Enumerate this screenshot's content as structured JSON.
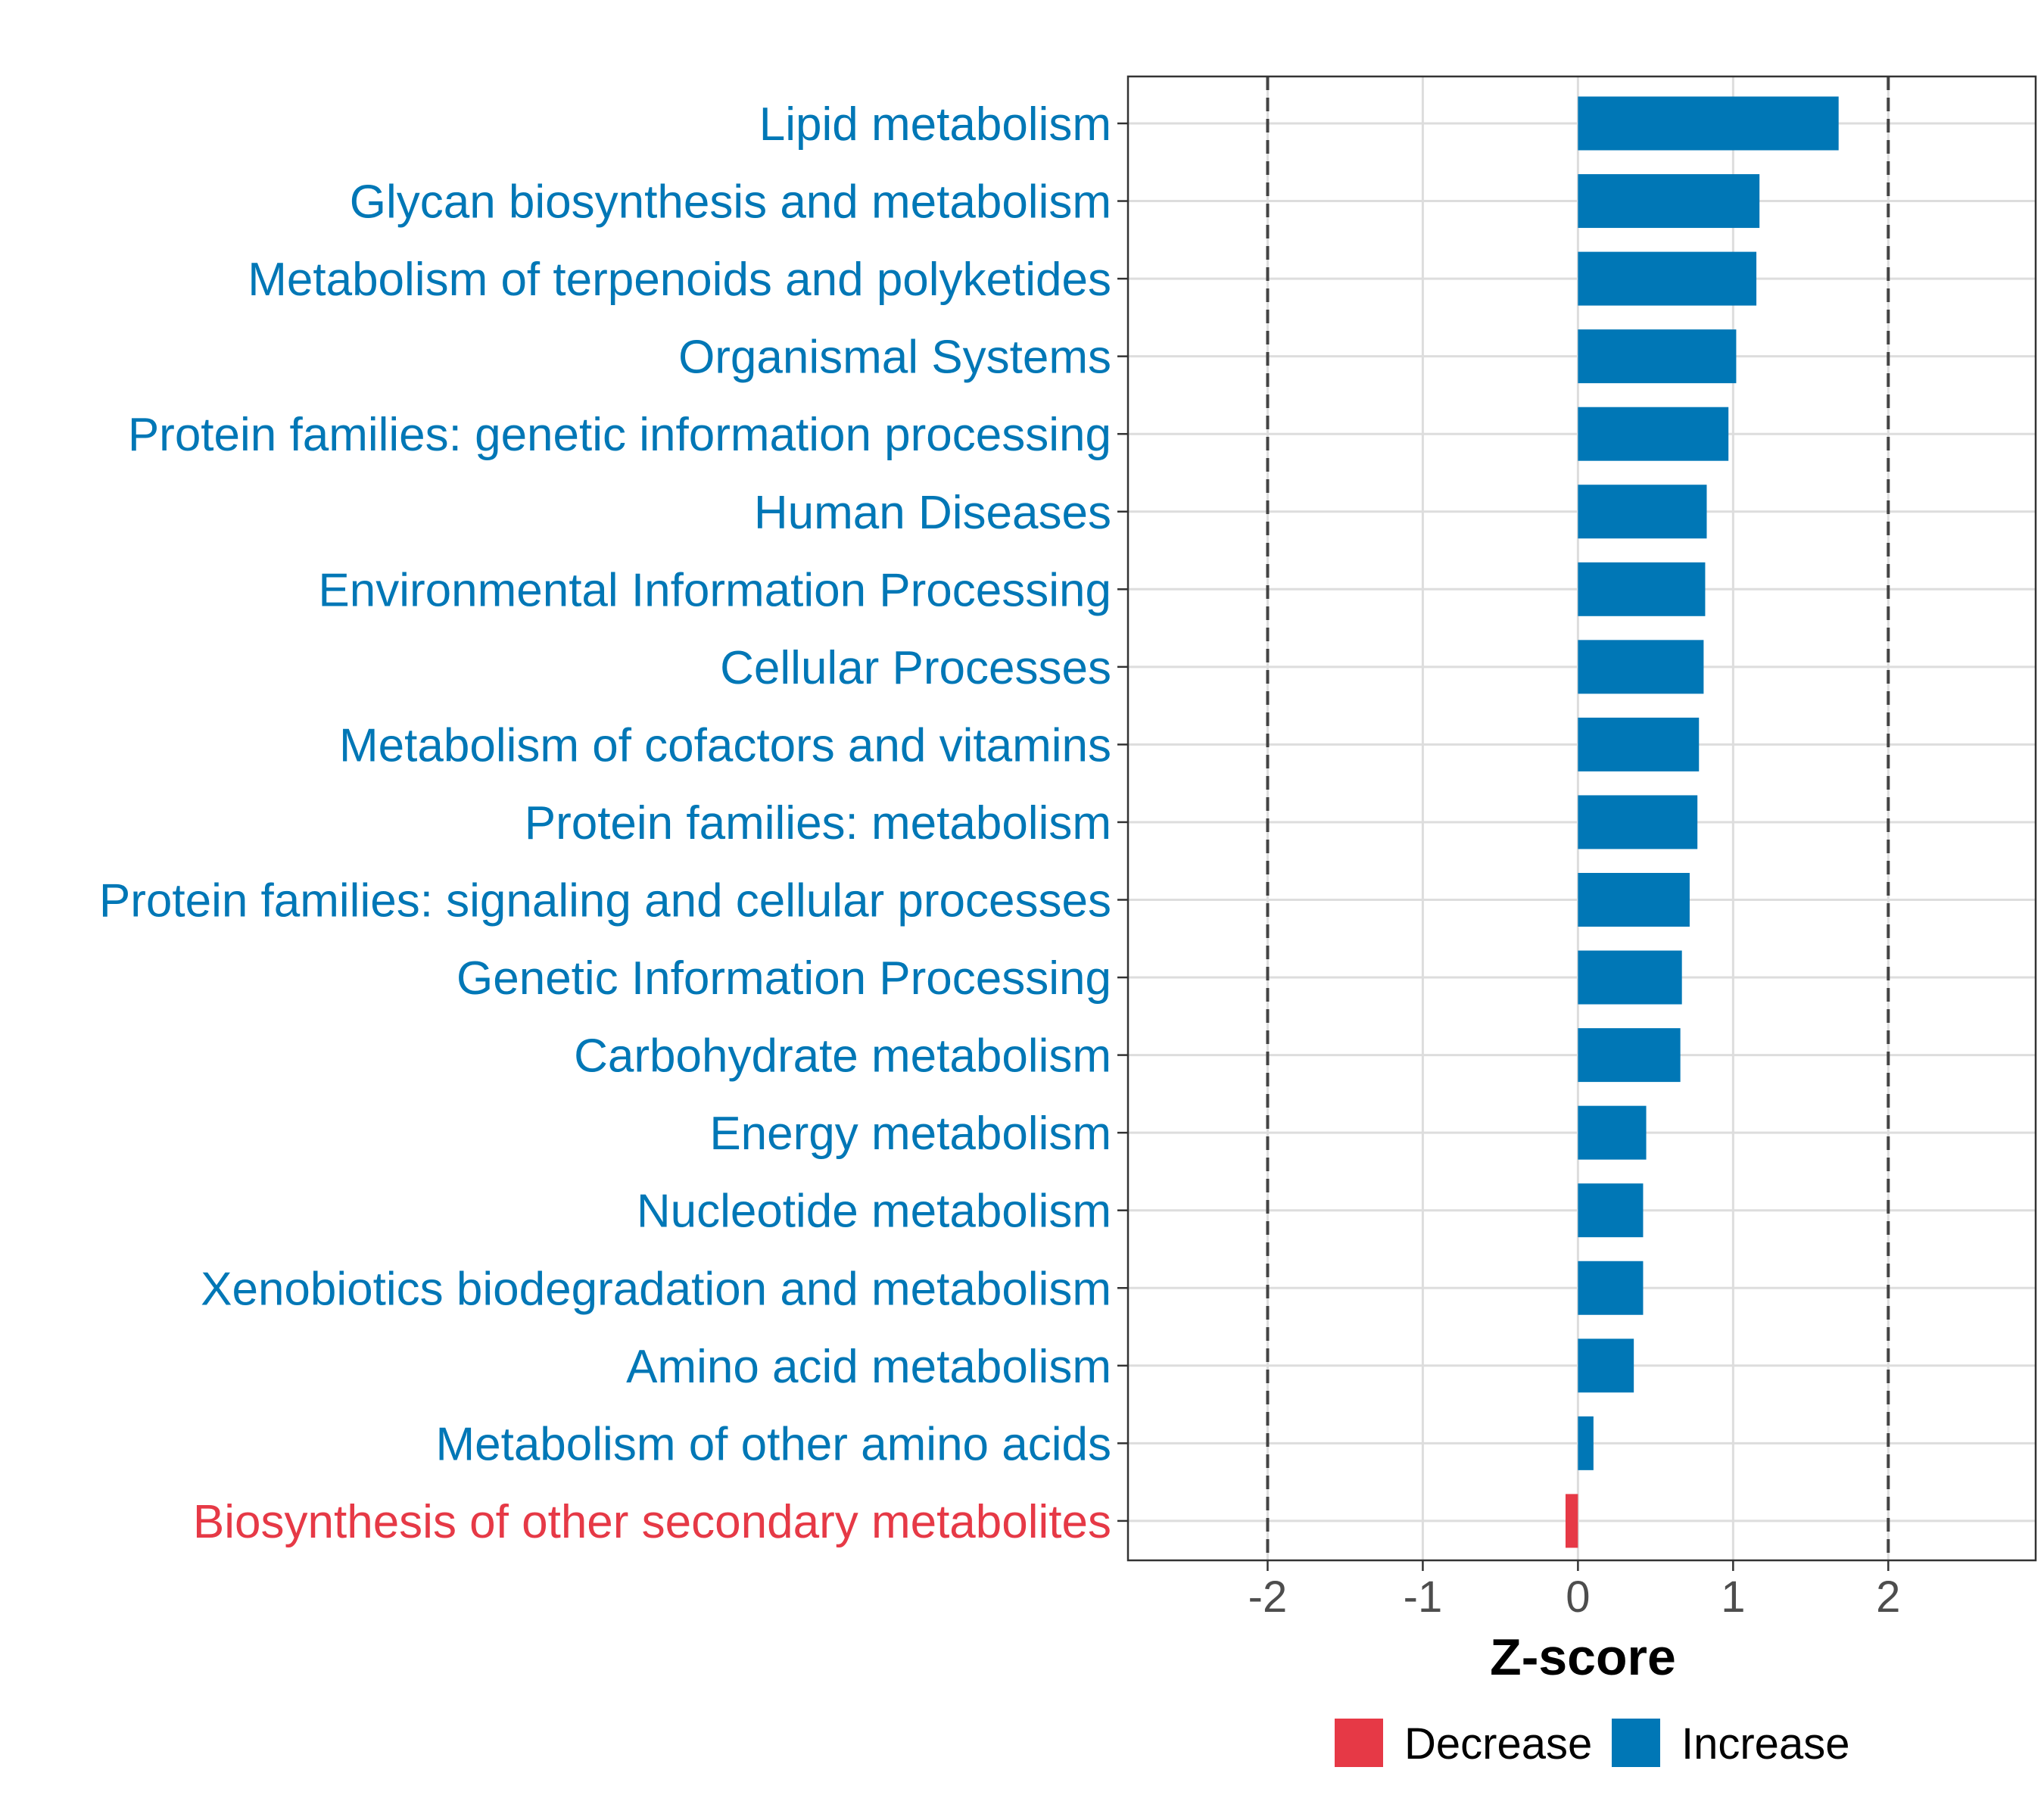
{
  "chart_data": {
    "type": "bar",
    "orientation": "horizontal",
    "xlabel": "Z-score",
    "xlim": [
      -2.9,
      2.95
    ],
    "xticks": [
      -2,
      -1,
      0,
      1,
      2
    ],
    "xtick_labels": [
      "-2",
      "-1",
      "0",
      "1",
      "2"
    ],
    "reference_lines": [
      -2,
      2
    ],
    "grid": true,
    "categories": [
      "Lipid metabolism",
      "Glycan biosynthesis and metabolism",
      "Metabolism of terpenoids and polyketides",
      "Organismal Systems",
      "Protein families: genetic information processing",
      "Human Diseases",
      "Environmental Information Processing",
      "Cellular Processes",
      "Metabolism of cofactors and vitamins",
      "Protein families: metabolism",
      "Protein families: signaling and cellular processes",
      "Genetic Information Processing",
      "Carbohydrate metabolism",
      "Energy metabolism",
      "Nucleotide metabolism",
      "Xenobiotics biodegradation and metabolism",
      "Amino acid metabolism",
      "Metabolism of other amino acids",
      "Biosynthesis of other secondary metabolites"
    ],
    "values": [
      1.68,
      1.17,
      1.15,
      1.02,
      0.97,
      0.83,
      0.82,
      0.81,
      0.78,
      0.77,
      0.72,
      0.67,
      0.66,
      0.44,
      0.42,
      0.42,
      0.36,
      0.1,
      -0.08
    ],
    "groups": [
      "Increase",
      "Increase",
      "Increase",
      "Increase",
      "Increase",
      "Increase",
      "Increase",
      "Increase",
      "Increase",
      "Increase",
      "Increase",
      "Increase",
      "Increase",
      "Increase",
      "Increase",
      "Increase",
      "Increase",
      "Increase",
      "Decrease"
    ],
    "legend": {
      "placement": "bottom",
      "entries": [
        {
          "label": "Decrease",
          "color": "#E63946"
        },
        {
          "label": "Increase",
          "color": "#0077B6"
        }
      ]
    }
  }
}
